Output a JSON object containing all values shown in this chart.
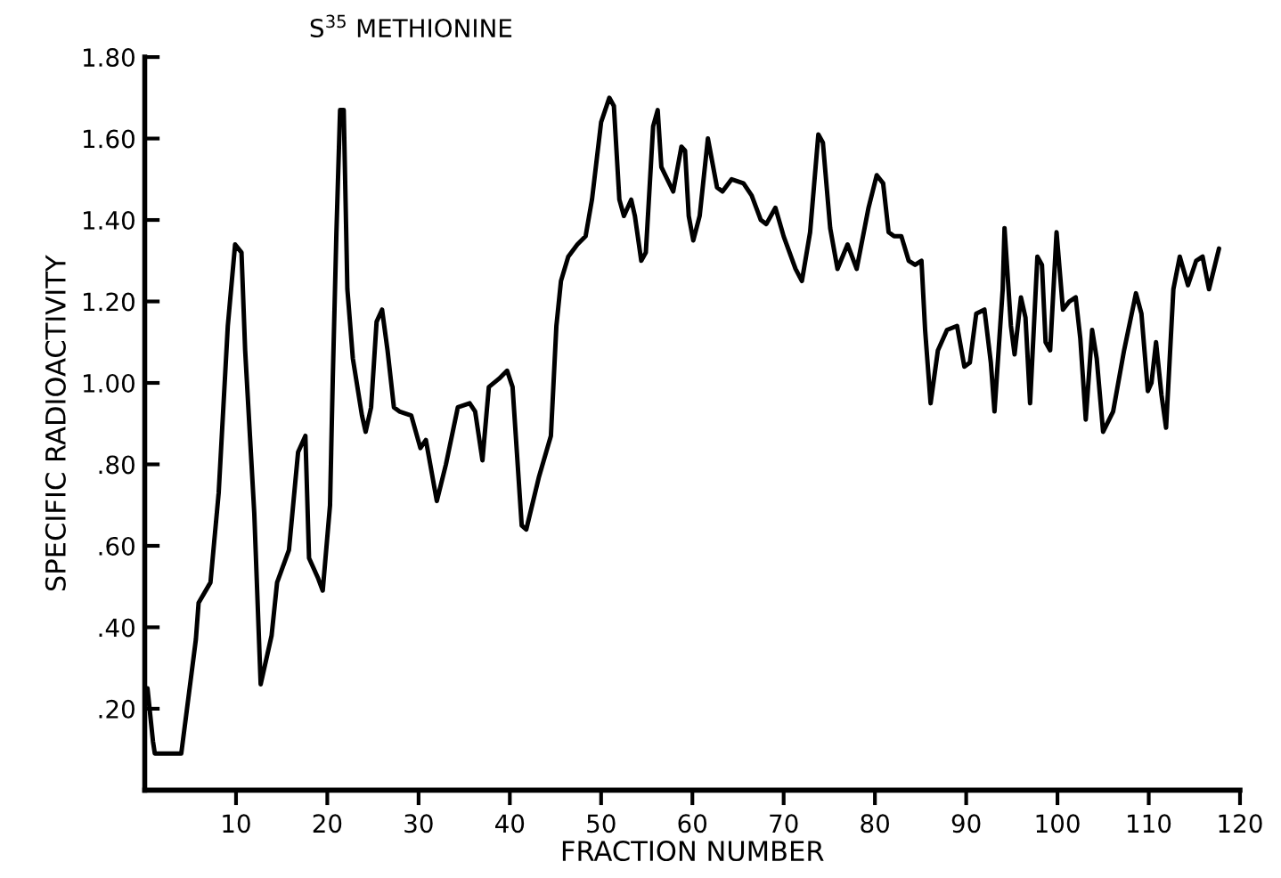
{
  "chart_data": {
    "type": "line",
    "title": "S$^{35}$ METHIONINE",
    "xlabel": "FRACTION NUMBER",
    "ylabel": "SPECIFIC RADIOACTIVITY",
    "xlim": [
      0,
      120
    ],
    "xticks": [
      10,
      20,
      30,
      40,
      50,
      60,
      70,
      80,
      90,
      100,
      110,
      120
    ],
    "ylim": [
      0,
      1.8
    ],
    "yticks": [
      {
        "value": 0.2,
        "label": ".20"
      },
      {
        "value": 0.4,
        "label": ".40"
      },
      {
        "value": 0.6,
        "label": ".60"
      },
      {
        "value": 0.8,
        "label": ".80"
      },
      {
        "value": 1.0,
        "label": "1.00"
      },
      {
        "value": 1.2,
        "label": "1.20"
      },
      {
        "value": 1.4,
        "label": "1.40"
      },
      {
        "value": 1.6,
        "label": "1.60"
      },
      {
        "value": 1.8,
        "label": "1.80"
      }
    ],
    "grid": false,
    "marker": "none",
    "line_style": "solid",
    "series": [
      {
        "color": "#000000",
        "x": [
          0.3,
          0.9,
          1.1,
          4.0,
          5.6,
          5.9,
          7.2,
          8.1,
          9.1,
          9.9,
          10.6,
          11.0,
          12.0,
          12.7,
          13.9,
          14.5,
          15.8,
          16.8,
          17.6,
          18.0,
          19.0,
          19.5,
          20.3,
          20.6,
          21.0,
          21.4,
          21.8,
          22.2,
          22.8,
          23.8,
          24.2,
          24.8,
          25.4,
          26.0,
          26.6,
          27.3,
          27.9,
          29.2,
          30.2,
          30.8,
          32.0,
          33.0,
          34.3,
          35.6,
          36.2,
          37.0,
          37.7,
          38.8,
          39.7,
          40.3,
          41.3,
          41.8,
          43.2,
          44.5,
          45.1,
          45.6,
          46.4,
          47.4,
          48.3,
          49.0,
          50.0,
          50.9,
          51.4,
          52.0,
          52.5,
          53.3,
          53.7,
          54.4,
          54.9,
          55.7,
          56.2,
          56.6,
          57.9,
          58.8,
          59.2,
          59.6,
          60.1,
          60.8,
          61.7,
          62.7,
          63.3,
          64.3,
          65.6,
          66.5,
          67.5,
          68.1,
          69.1,
          70.0,
          71.3,
          72.0,
          72.9,
          73.8,
          74.3,
          75.1,
          75.9,
          77.0,
          78.0,
          79.3,
          80.2,
          80.9,
          81.5,
          82.1,
          82.9,
          83.7,
          84.4,
          85.1,
          85.5,
          86.1,
          86.9,
          87.9,
          89.0,
          89.8,
          90.4,
          91.1,
          92.0,
          92.7,
          93.1,
          94.0,
          94.2,
          94.9,
          95.3,
          96.0,
          96.5,
          97.0,
          97.8,
          98.3,
          98.7,
          99.2,
          99.9,
          100.6,
          101.3,
          102.0,
          102.5,
          103.1,
          103.8,
          104.3,
          105.0,
          106.1,
          107.3,
          108.6,
          109.2,
          109.9,
          110.3,
          110.8,
          111.4,
          111.9,
          112.7,
          113.4,
          114.3,
          115.2,
          115.9,
          116.6,
          117.7
        ],
        "values": [
          0.25,
          0.12,
          0.09,
          0.09,
          0.37,
          0.46,
          0.51,
          0.73,
          1.14,
          1.34,
          1.32,
          1.08,
          0.68,
          0.26,
          0.38,
          0.51,
          0.59,
          0.83,
          0.87,
          0.57,
          0.52,
          0.49,
          0.7,
          1.01,
          1.37,
          1.67,
          1.67,
          1.23,
          1.06,
          0.92,
          0.88,
          0.94,
          1.15,
          1.18,
          1.08,
          0.94,
          0.93,
          0.92,
          0.84,
          0.86,
          0.71,
          0.8,
          0.94,
          0.95,
          0.93,
          0.81,
          0.99,
          1.01,
          1.03,
          0.99,
          0.65,
          0.64,
          0.77,
          0.87,
          1.14,
          1.25,
          1.31,
          1.34,
          1.36,
          1.45,
          1.64,
          1.7,
          1.68,
          1.45,
          1.41,
          1.45,
          1.41,
          1.3,
          1.32,
          1.63,
          1.67,
          1.53,
          1.47,
          1.58,
          1.57,
          1.41,
          1.35,
          1.41,
          1.6,
          1.48,
          1.47,
          1.5,
          1.49,
          1.46,
          1.4,
          1.39,
          1.43,
          1.36,
          1.28,
          1.25,
          1.37,
          1.61,
          1.59,
          1.38,
          1.28,
          1.34,
          1.28,
          1.43,
          1.51,
          1.49,
          1.37,
          1.36,
          1.36,
          1.3,
          1.29,
          1.3,
          1.13,
          0.95,
          1.08,
          1.13,
          1.14,
          1.04,
          1.05,
          1.17,
          1.18,
          1.05,
          0.93,
          1.23,
          1.38,
          1.14,
          1.07,
          1.21,
          1.16,
          0.95,
          1.31,
          1.29,
          1.1,
          1.08,
          1.37,
          1.18,
          1.2,
          1.21,
          1.11,
          0.91,
          1.13,
          1.06,
          0.88,
          0.93,
          1.08,
          1.22,
          1.17,
          0.98,
          1.0,
          1.1,
          0.97,
          0.89,
          1.23,
          1.31,
          1.24,
          1.3,
          1.31,
          1.23,
          1.33
        ]
      }
    ]
  }
}
